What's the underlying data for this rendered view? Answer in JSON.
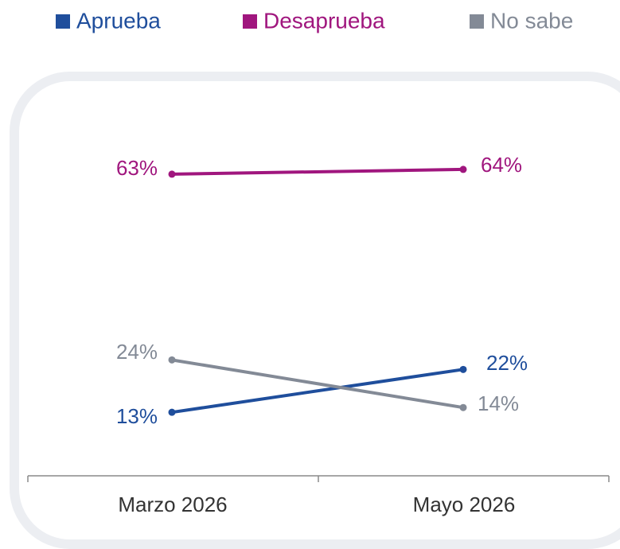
{
  "chart_data": {
    "type": "line",
    "categories": [
      "Marzo 2026",
      "Mayo 2026"
    ],
    "series": [
      {
        "name": "Aprueba",
        "color": "#1f4e9c",
        "values": [
          13,
          22
        ],
        "value_labels": [
          "13%",
          "22%"
        ]
      },
      {
        "name": "Desaprueba",
        "color": "#a0167e",
        "values": [
          63,
          64
        ],
        "value_labels": [
          "63%",
          "64%"
        ]
      },
      {
        "name": "No sabe",
        "color": "#838a96",
        "values": [
          24,
          14
        ],
        "value_labels": [
          "24%",
          "14%"
        ]
      }
    ],
    "ylim": [
      0,
      70
    ],
    "legend": "top"
  }
}
